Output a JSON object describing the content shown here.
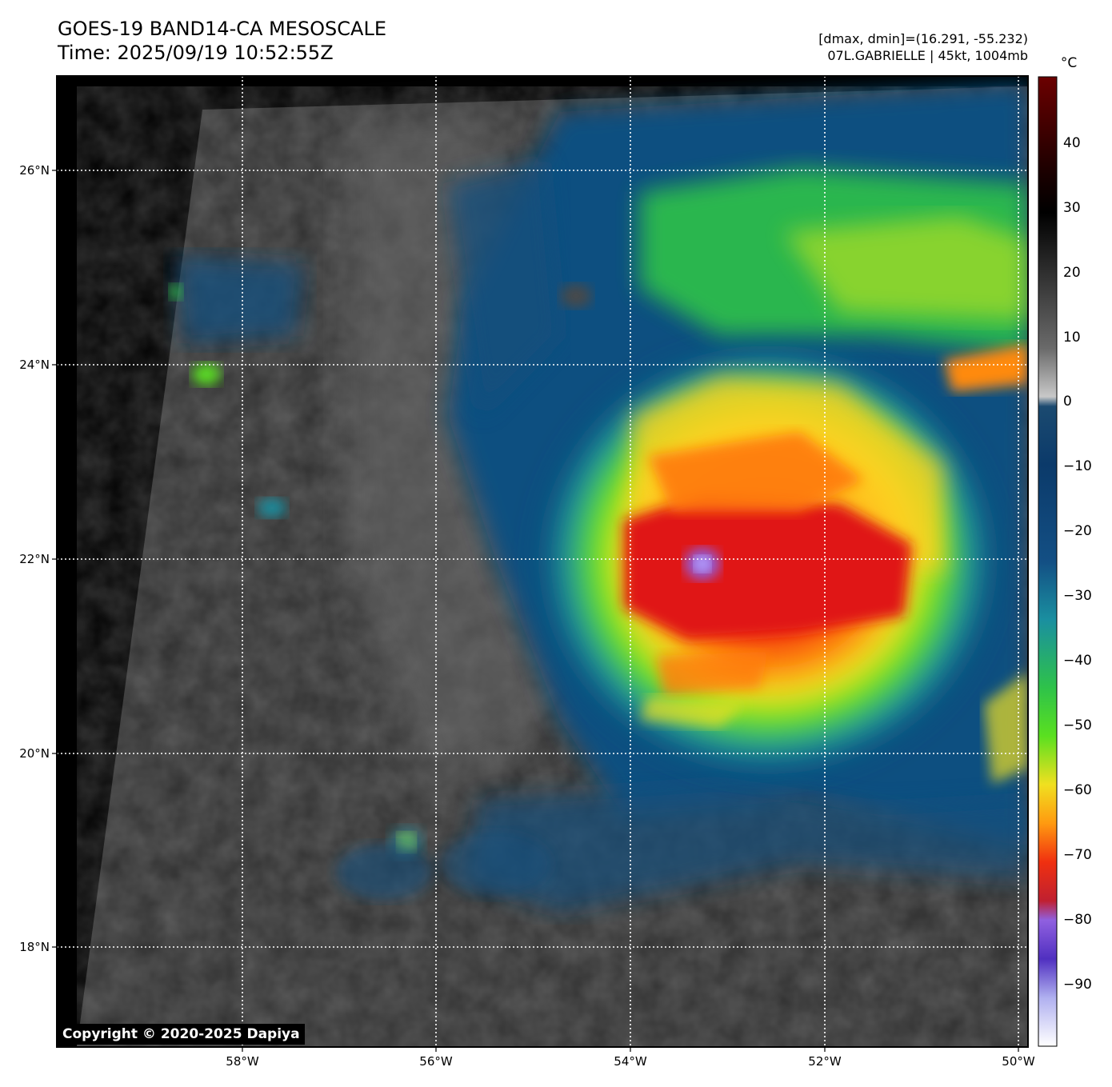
{
  "header": {
    "title_line1": "GOES-19 BAND14-CA MESOSCALE",
    "title_line2": "Time: 2025/09/19 10:52:55Z",
    "info_line1": "[dmax, dmin]=(16.291, -55.232)",
    "info_line2": "07L.GABRIELLE | 45kt, 1004mb"
  },
  "map": {
    "lon_labels": [
      "58°W",
      "56°W",
      "54°W",
      "52°W",
      "50°W"
    ],
    "lat_labels": [
      "26°N",
      "24°N",
      "22°N",
      "20°N",
      "18°N"
    ],
    "gridlines": "dotted white",
    "storm_center": "22°N 53.3°W"
  },
  "colorbar": {
    "unit": "°C",
    "ticks": [
      "40",
      "30",
      "20",
      "10",
      "0",
      "−10",
      "−20",
      "−30",
      "−40",
      "−50",
      "−60",
      "−70",
      "−80",
      "−90"
    ],
    "colors": [
      "#6b0000",
      "#000000",
      "#c8c8c8",
      "#0b3a6a",
      "#1a8fa0",
      "#2ec24a",
      "#f0e020",
      "#ff7a00",
      "#e01010",
      "#9060e0",
      "#ffffff"
    ]
  },
  "copyright": "Copyright © 2020-2025 Dapiya"
}
